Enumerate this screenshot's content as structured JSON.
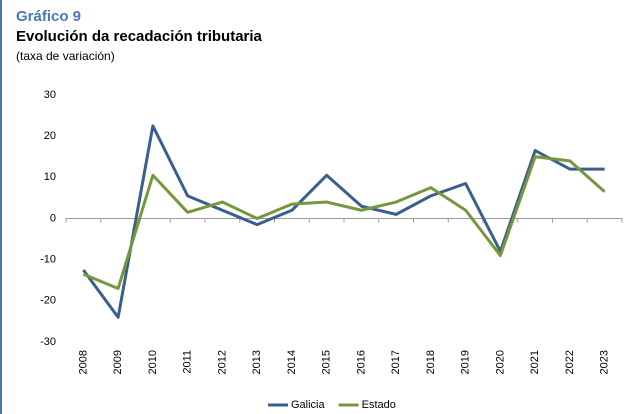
{
  "chart_data": {
    "type": "line",
    "figure_label": "Gráfico 9",
    "title": "Evolución da recadación tributaria",
    "subtitle": "(taxa de variación)",
    "categories": [
      "2008",
      "2009",
      "2010",
      "2011",
      "2012",
      "2013",
      "2014",
      "2015",
      "2016",
      "2017",
      "2018",
      "2019",
      "2020",
      "2021",
      "2022",
      "2023"
    ],
    "series": [
      {
        "name": "Galicia",
        "color": "#3a5f8f",
        "values": [
          -12.5,
          -24,
          22.5,
          5.5,
          2,
          -1.5,
          2,
          10.5,
          3,
          1,
          5.5,
          8.5,
          -8,
          16.5,
          12,
          12
        ]
      },
      {
        "name": "Estado",
        "color": "#77973d",
        "values": [
          -13.5,
          -17,
          10.5,
          1.5,
          4,
          0,
          3.5,
          4,
          2,
          4,
          7.5,
          2,
          -9,
          15,
          14,
          6.5
        ]
      }
    ],
    "ylim": [
      -30,
      30
    ],
    "yticks": [
      -30,
      -20,
      -10,
      0,
      10,
      20,
      30
    ],
    "grid": false,
    "legend": "bottom"
  }
}
